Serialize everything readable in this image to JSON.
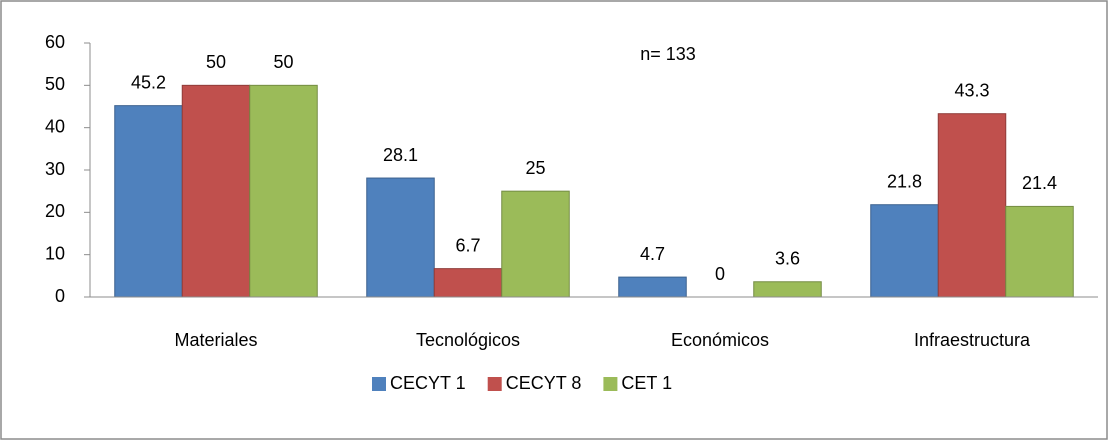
{
  "chart_data": {
    "type": "bar",
    "annotation": "n= 133",
    "categories": [
      "Materiales",
      "Tecnológicos",
      "Económicos",
      "Infraestructura"
    ],
    "series": [
      {
        "name": "CECYT 1",
        "color": "#4f81bd",
        "values": [
          45.2,
          28.1,
          4.7,
          21.8
        ]
      },
      {
        "name": "CECYT 8",
        "color": "#c0504d",
        "values": [
          50,
          6.7,
          0,
          43.3
        ]
      },
      {
        "name": "CET 1",
        "color": "#9bbb59",
        "values": [
          50,
          25,
          3.6,
          21.4
        ]
      }
    ],
    "ylim": [
      0,
      60
    ],
    "yticks": [
      0,
      10,
      20,
      30,
      40,
      50,
      60
    ],
    "grid": false,
    "legend": "bottom"
  }
}
